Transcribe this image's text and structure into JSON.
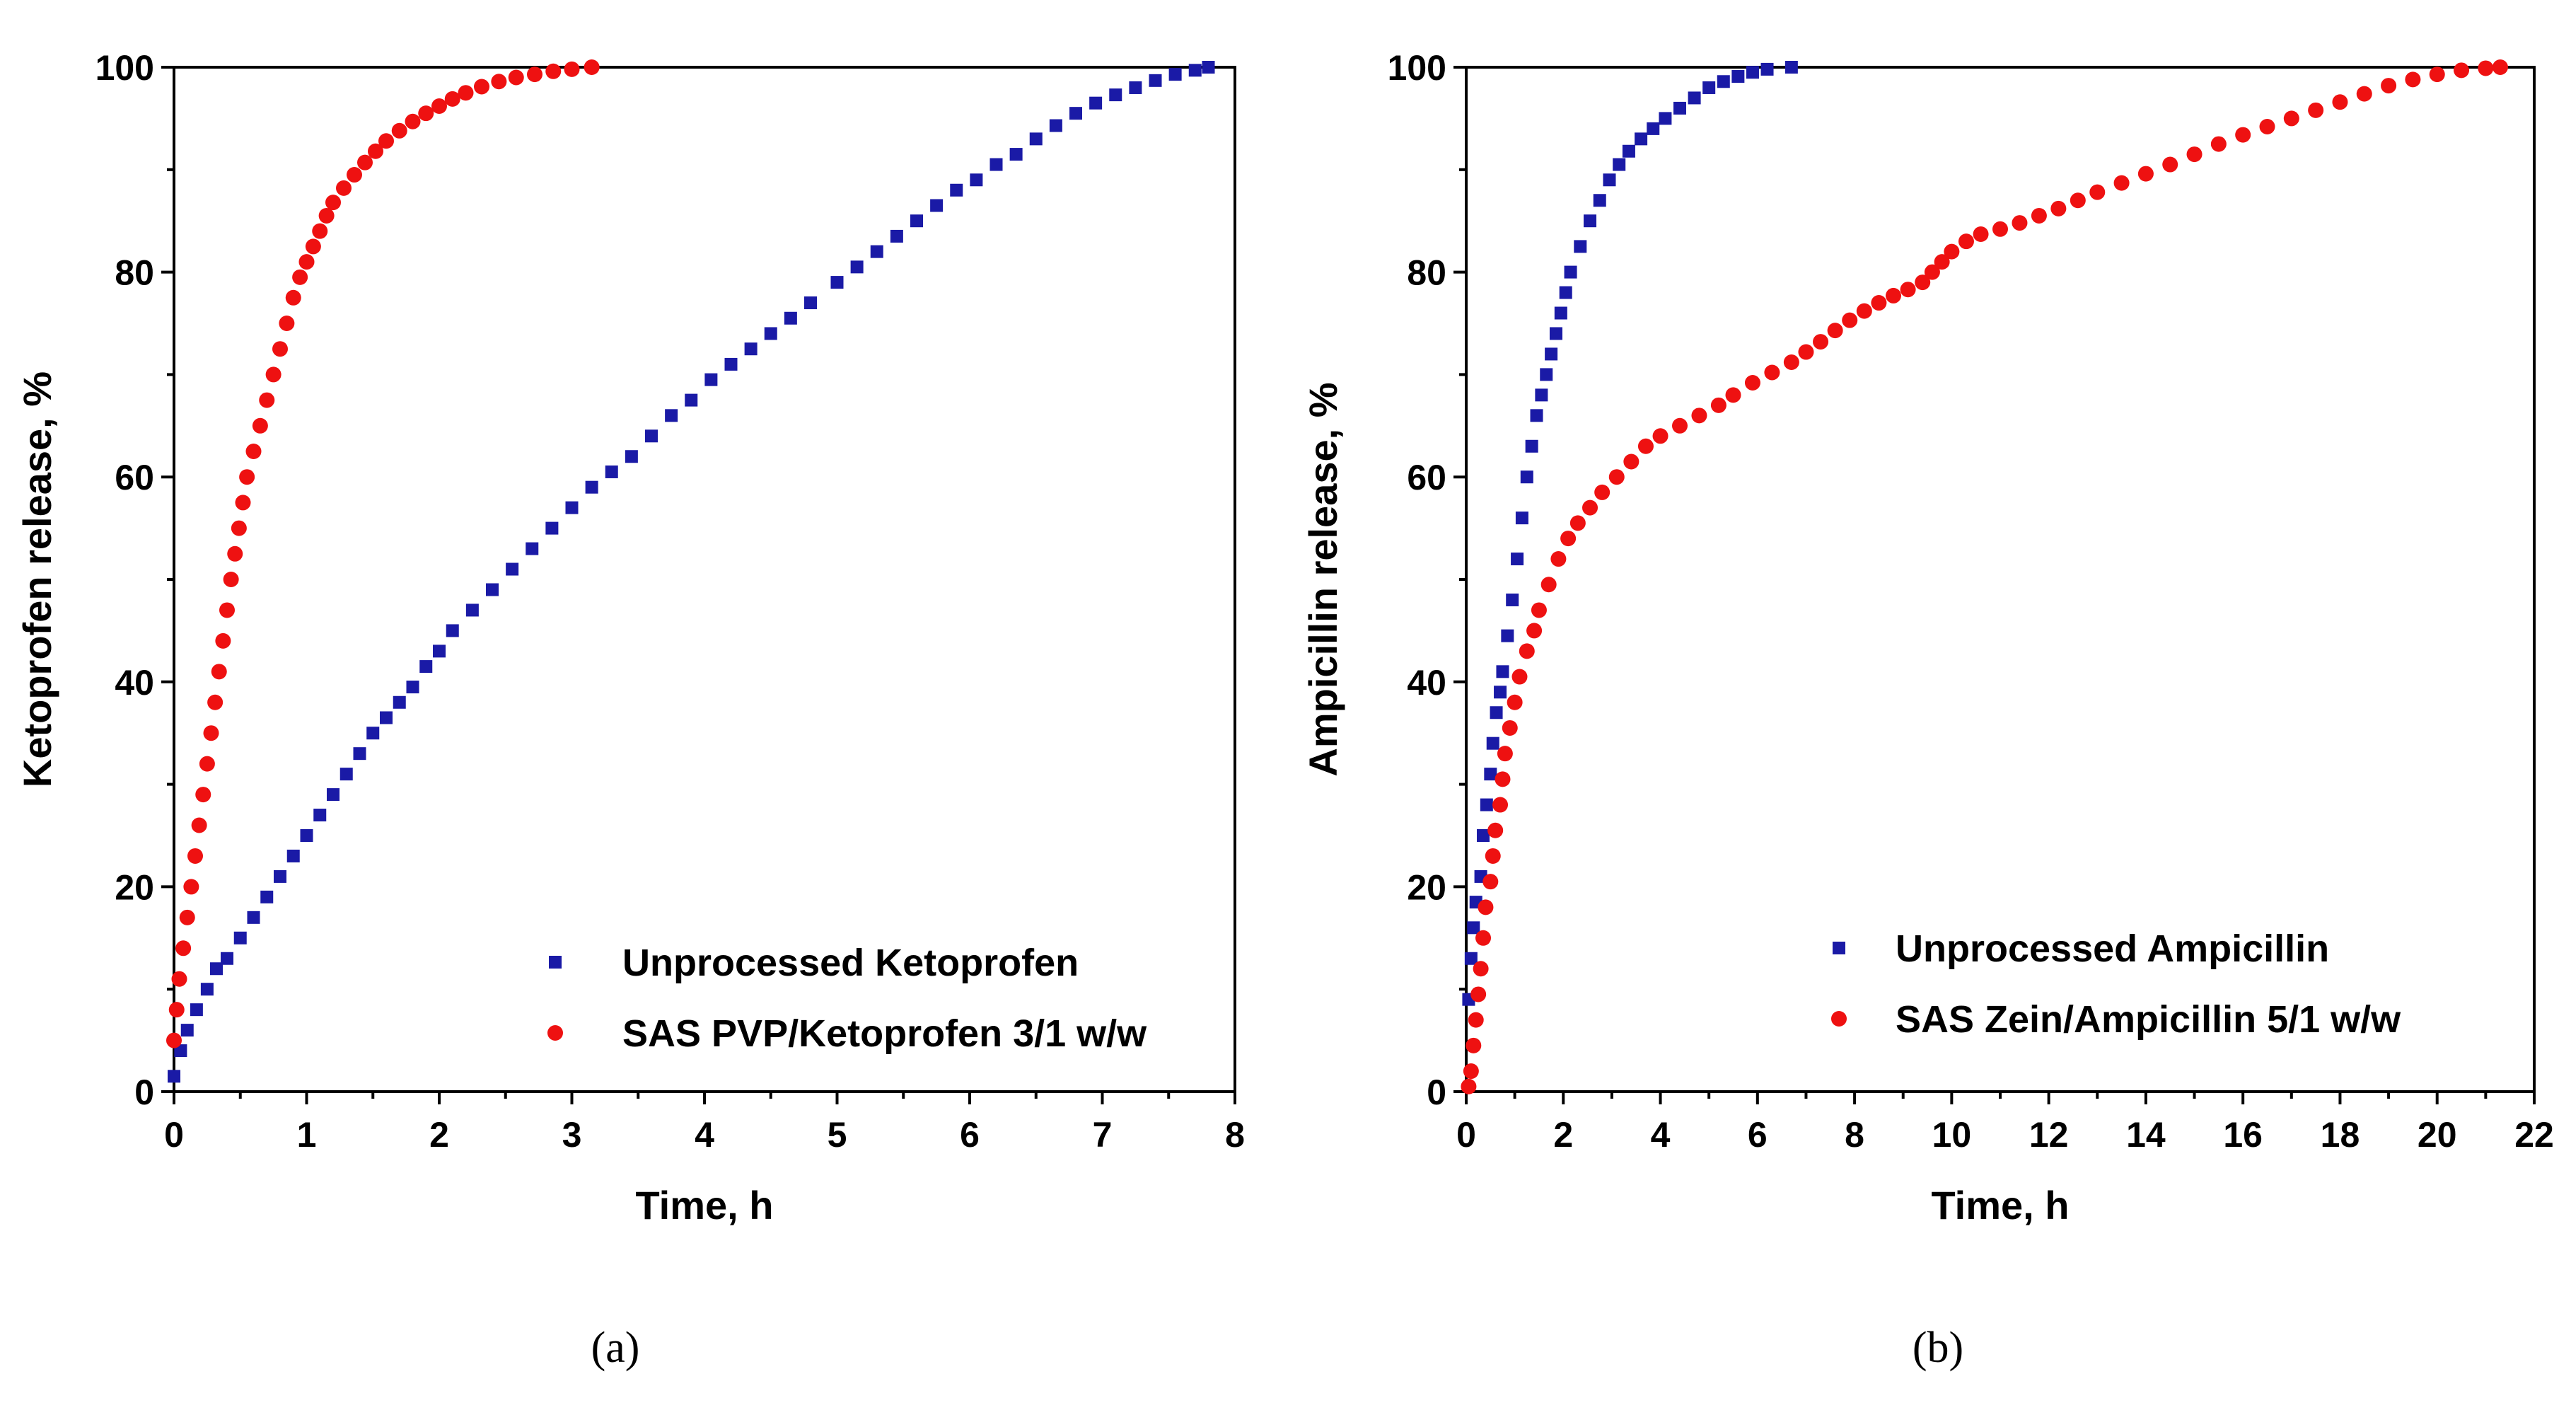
{
  "chart_data": [
    {
      "type": "scatter",
      "panel": "a",
      "caption": "(a)",
      "xlabel": "Time, h",
      "ylabel": "Ketoprofen release, %",
      "xlim": [
        0,
        8
      ],
      "ylim": [
        0,
        100
      ],
      "xticks": [
        0,
        1,
        2,
        3,
        4,
        5,
        6,
        7,
        8
      ],
      "yticks": [
        0,
        20,
        40,
        60,
        80,
        100
      ],
      "legend_position": "bottom-right",
      "series": [
        {
          "name": "Unprocessed Ketoprofen",
          "marker": "square",
          "color": "#1a1aa6",
          "points": [
            [
              0.0,
              1.5
            ],
            [
              0.05,
              4
            ],
            [
              0.1,
              6
            ],
            [
              0.17,
              8
            ],
            [
              0.25,
              10
            ],
            [
              0.32,
              12
            ],
            [
              0.4,
              13
            ],
            [
              0.5,
              15
            ],
            [
              0.6,
              17
            ],
            [
              0.7,
              19
            ],
            [
              0.8,
              21
            ],
            [
              0.9,
              23
            ],
            [
              1.0,
              25
            ],
            [
              1.1,
              27
            ],
            [
              1.2,
              29
            ],
            [
              1.3,
              31
            ],
            [
              1.4,
              33
            ],
            [
              1.5,
              35
            ],
            [
              1.6,
              36.5
            ],
            [
              1.7,
              38
            ],
            [
              1.8,
              39.5
            ],
            [
              1.9,
              41.5
            ],
            [
              2.0,
              43
            ],
            [
              2.1,
              45
            ],
            [
              2.25,
              47
            ],
            [
              2.4,
              49
            ],
            [
              2.55,
              51
            ],
            [
              2.7,
              53
            ],
            [
              2.85,
              55
            ],
            [
              3.0,
              57
            ],
            [
              3.15,
              59
            ],
            [
              3.3,
              60.5
            ],
            [
              3.45,
              62
            ],
            [
              3.6,
              64
            ],
            [
              3.75,
              66
            ],
            [
              3.9,
              67.5
            ],
            [
              4.05,
              69.5
            ],
            [
              4.2,
              71
            ],
            [
              4.35,
              72.5
            ],
            [
              4.5,
              74
            ],
            [
              4.65,
              75.5
            ],
            [
              4.8,
              77
            ],
            [
              5.0,
              79
            ],
            [
              5.15,
              80.5
            ],
            [
              5.3,
              82
            ],
            [
              5.45,
              83.5
            ],
            [
              5.6,
              85
            ],
            [
              5.75,
              86.5
            ],
            [
              5.9,
              88
            ],
            [
              6.05,
              89
            ],
            [
              6.2,
              90.5
            ],
            [
              6.35,
              91.5
            ],
            [
              6.5,
              93
            ],
            [
              6.65,
              94.3
            ],
            [
              6.8,
              95.5
            ],
            [
              6.95,
              96.5
            ],
            [
              7.1,
              97.3
            ],
            [
              7.25,
              98
            ],
            [
              7.4,
              98.7
            ],
            [
              7.55,
              99.3
            ],
            [
              7.7,
              99.7
            ],
            [
              7.8,
              100
            ]
          ]
        },
        {
          "name": "SAS PVP/Ketoprofen 3/1 w/w",
          "marker": "circle",
          "color": "#ee1111",
          "points": [
            [
              0.0,
              5
            ],
            [
              0.02,
              8
            ],
            [
              0.04,
              11
            ],
            [
              0.07,
              14
            ],
            [
              0.1,
              17
            ],
            [
              0.13,
              20
            ],
            [
              0.16,
              23
            ],
            [
              0.19,
              26
            ],
            [
              0.22,
              29
            ],
            [
              0.25,
              32
            ],
            [
              0.28,
              35
            ],
            [
              0.31,
              38
            ],
            [
              0.34,
              41
            ],
            [
              0.37,
              44
            ],
            [
              0.4,
              47
            ],
            [
              0.43,
              50
            ],
            [
              0.46,
              52.5
            ],
            [
              0.49,
              55
            ],
            [
              0.52,
              57.5
            ],
            [
              0.55,
              60
            ],
            [
              0.6,
              62.5
            ],
            [
              0.65,
              65
            ],
            [
              0.7,
              67.5
            ],
            [
              0.75,
              70
            ],
            [
              0.8,
              72.5
            ],
            [
              0.85,
              75
            ],
            [
              0.9,
              77.5
            ],
            [
              0.95,
              79.5
            ],
            [
              1.0,
              81
            ],
            [
              1.05,
              82.5
            ],
            [
              1.1,
              84
            ],
            [
              1.15,
              85.5
            ],
            [
              1.2,
              86.8
            ],
            [
              1.28,
              88.2
            ],
            [
              1.36,
              89.5
            ],
            [
              1.44,
              90.7
            ],
            [
              1.52,
              91.8
            ],
            [
              1.6,
              92.8
            ],
            [
              1.7,
              93.8
            ],
            [
              1.8,
              94.7
            ],
            [
              1.9,
              95.5
            ],
            [
              2.0,
              96.2
            ],
            [
              2.1,
              96.9
            ],
            [
              2.2,
              97.5
            ],
            [
              2.32,
              98.1
            ],
            [
              2.45,
              98.6
            ],
            [
              2.58,
              99
            ],
            [
              2.72,
              99.3
            ],
            [
              2.86,
              99.6
            ],
            [
              3.0,
              99.8
            ],
            [
              3.15,
              100
            ]
          ]
        }
      ]
    },
    {
      "type": "scatter",
      "panel": "b",
      "caption": "(b)",
      "xlabel": "Time, h",
      "ylabel": "Ampicillin release, %",
      "xlim": [
        0,
        22
      ],
      "ylim": [
        0,
        100
      ],
      "xticks": [
        0,
        2,
        4,
        6,
        8,
        10,
        12,
        14,
        16,
        18,
        20,
        22
      ],
      "yticks": [
        0,
        20,
        40,
        60,
        80,
        100
      ],
      "legend_position": "bottom-right",
      "series": [
        {
          "name": "Unprocessed Ampicillin",
          "marker": "square",
          "color": "#1a1aa6",
          "points": [
            [
              0.05,
              9
            ],
            [
              0.1,
              13
            ],
            [
              0.15,
              16
            ],
            [
              0.2,
              18.5
            ],
            [
              0.3,
              21
            ],
            [
              0.35,
              25
            ],
            [
              0.42,
              28
            ],
            [
              0.5,
              31
            ],
            [
              0.55,
              34
            ],
            [
              0.62,
              37
            ],
            [
              0.7,
              39
            ],
            [
              0.75,
              41
            ],
            [
              0.85,
              44.5
            ],
            [
              0.95,
              48
            ],
            [
              1.05,
              52
            ],
            [
              1.15,
              56
            ],
            [
              1.25,
              60
            ],
            [
              1.35,
              63
            ],
            [
              1.45,
              66
            ],
            [
              1.55,
              68
            ],
            [
              1.65,
              70
            ],
            [
              1.75,
              72
            ],
            [
              1.85,
              74
            ],
            [
              1.95,
              76
            ],
            [
              2.05,
              78
            ],
            [
              2.15,
              80
            ],
            [
              2.35,
              82.5
            ],
            [
              2.55,
              85
            ],
            [
              2.75,
              87
            ],
            [
              2.95,
              89
            ],
            [
              3.15,
              90.5
            ],
            [
              3.35,
              91.8
            ],
            [
              3.6,
              93
            ],
            [
              3.85,
              94
            ],
            [
              4.1,
              95
            ],
            [
              4.4,
              96
            ],
            [
              4.7,
              97
            ],
            [
              5.0,
              98
            ],
            [
              5.3,
              98.6
            ],
            [
              5.6,
              99.1
            ],
            [
              5.9,
              99.5
            ],
            [
              6.2,
              99.8
            ],
            [
              6.7,
              100
            ]
          ]
        },
        {
          "name": "SAS Zein/Ampicillin 5/1 w/w",
          "marker": "circle",
          "color": "#ee1111",
          "points": [
            [
              0.05,
              0.5
            ],
            [
              0.1,
              2
            ],
            [
              0.15,
              4.5
            ],
            [
              0.2,
              7
            ],
            [
              0.25,
              9.5
            ],
            [
              0.3,
              12
            ],
            [
              0.35,
              15
            ],
            [
              0.4,
              18
            ],
            [
              0.5,
              20.5
            ],
            [
              0.55,
              23
            ],
            [
              0.6,
              25.5
            ],
            [
              0.7,
              28
            ],
            [
              0.75,
              30.5
            ],
            [
              0.8,
              33
            ],
            [
              0.9,
              35.5
            ],
            [
              1.0,
              38
            ],
            [
              1.1,
              40.5
            ],
            [
              1.25,
              43
            ],
            [
              1.4,
              45
            ],
            [
              1.5,
              47
            ],
            [
              1.7,
              49.5
            ],
            [
              1.9,
              52
            ],
            [
              2.1,
              54
            ],
            [
              2.3,
              55.5
            ],
            [
              2.55,
              57
            ],
            [
              2.8,
              58.5
            ],
            [
              3.1,
              60
            ],
            [
              3.4,
              61.5
            ],
            [
              3.7,
              63
            ],
            [
              4.0,
              64
            ],
            [
              4.4,
              65
            ],
            [
              4.8,
              66
            ],
            [
              5.2,
              67
            ],
            [
              5.5,
              68
            ],
            [
              5.9,
              69.2
            ],
            [
              6.3,
              70.2
            ],
            [
              6.7,
              71.2
            ],
            [
              7.0,
              72.2
            ],
            [
              7.3,
              73.2
            ],
            [
              7.6,
              74.3
            ],
            [
              7.9,
              75.3
            ],
            [
              8.2,
              76.2
            ],
            [
              8.5,
              77
            ],
            [
              8.8,
              77.7
            ],
            [
              9.1,
              78.3
            ],
            [
              9.4,
              79
            ],
            [
              9.6,
              80
            ],
            [
              9.8,
              81
            ],
            [
              10.0,
              82
            ],
            [
              10.3,
              83
            ],
            [
              10.6,
              83.7
            ],
            [
              11.0,
              84.2
            ],
            [
              11.4,
              84.8
            ],
            [
              11.8,
              85.5
            ],
            [
              12.2,
              86.2
            ],
            [
              12.6,
              87
            ],
            [
              13.0,
              87.8
            ],
            [
              13.5,
              88.7
            ],
            [
              14.0,
              89.6
            ],
            [
              14.5,
              90.5
            ],
            [
              15.0,
              91.5
            ],
            [
              15.5,
              92.5
            ],
            [
              16.0,
              93.4
            ],
            [
              16.5,
              94.2
            ],
            [
              17.0,
              95
            ],
            [
              17.5,
              95.8
            ],
            [
              18.0,
              96.6
            ],
            [
              18.5,
              97.4
            ],
            [
              19.0,
              98.2
            ],
            [
              19.5,
              98.8
            ],
            [
              20.0,
              99.3
            ],
            [
              20.5,
              99.7
            ],
            [
              21.0,
              99.9
            ],
            [
              21.3,
              100
            ]
          ]
        }
      ]
    }
  ]
}
